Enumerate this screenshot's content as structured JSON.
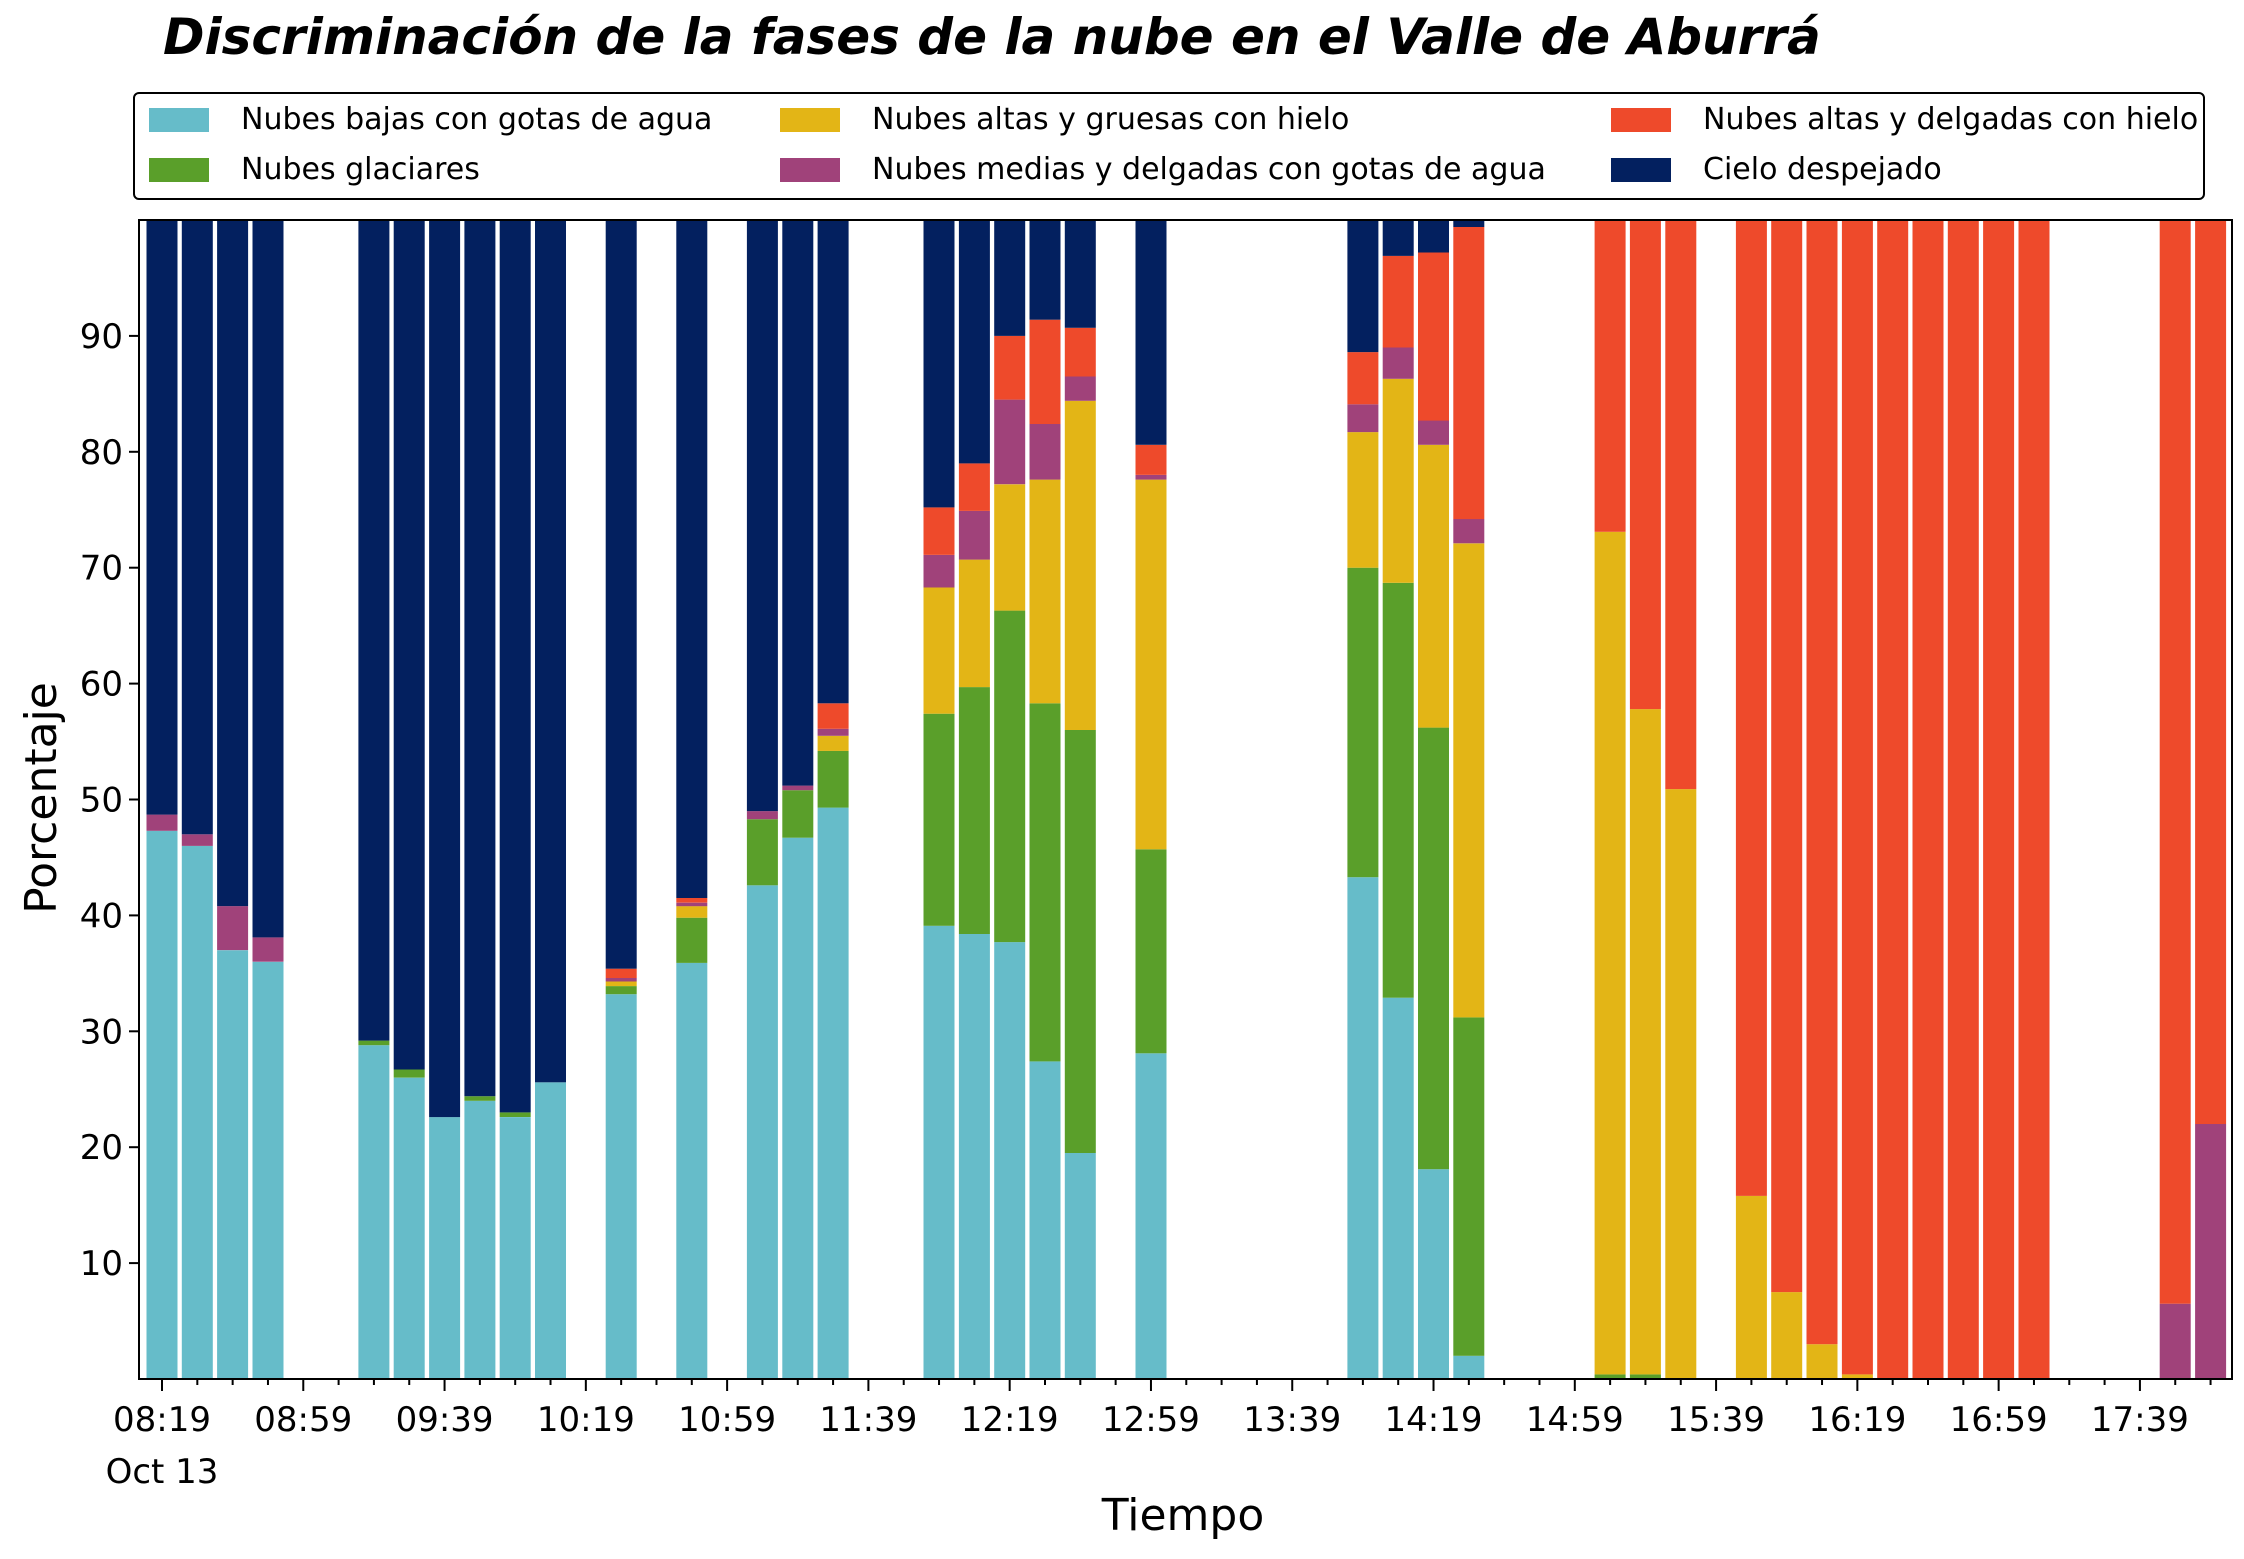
{
  "chart_data": {
    "type": "bar",
    "stacked": true,
    "title": "Discriminación de la fases de la nube en el Valle de Aburrá",
    "xlabel": "Tiempo",
    "ylabel": "Porcentaje",
    "ylim": [
      0,
      100
    ],
    "yticks": [
      10,
      20,
      30,
      40,
      50,
      60,
      70,
      80,
      90
    ],
    "x_start": "08:19",
    "x_step_minutes": 5,
    "xtick_labels": [
      {
        "label": "08:19",
        "sublabel": "Oct 13",
        "slot": 0
      },
      {
        "label": "08:59",
        "slot": 8
      },
      {
        "label": "09:39",
        "slot": 16
      },
      {
        "label": "10:19",
        "slot": 24
      },
      {
        "label": "10:59",
        "slot": 32
      },
      {
        "label": "11:39",
        "slot": 40
      },
      {
        "label": "12:19",
        "slot": 48
      },
      {
        "label": "12:59",
        "slot": 56
      },
      {
        "label": "13:39",
        "slot": 64
      },
      {
        "label": "14:19",
        "slot": 72
      },
      {
        "label": "14:59",
        "slot": 80
      },
      {
        "label": "15:39",
        "slot": 88
      },
      {
        "label": "16:19",
        "slot": 96
      },
      {
        "label": "16:59",
        "slot": 104
      },
      {
        "label": "17:39",
        "slot": 112
      }
    ],
    "grid": false,
    "legend_position": "top",
    "series": [
      {
        "name": "Nubes bajas con gotas de agua",
        "color": "#66BCC9"
      },
      {
        "name": "Nubes glaciares",
        "color": "#5A9F2A"
      },
      {
        "name": "Nubes altas y gruesas con hielo",
        "color": "#E3B516"
      },
      {
        "name": "Nubes medias y delgadas con gotas de agua",
        "color": "#A0427A"
      },
      {
        "name": "Nubes altas y delgadas con hielo",
        "color": "#EE4A2B"
      },
      {
        "name": "Cielo despejado",
        "color": "#03205F"
      }
    ],
    "bars": [
      {
        "slot": 0,
        "values": [
          47.3,
          0,
          0,
          1.4,
          0,
          51.3
        ]
      },
      {
        "slot": 2,
        "values": [
          46.0,
          0,
          0,
          1.0,
          0,
          53.0
        ]
      },
      {
        "slot": 4,
        "values": [
          37.0,
          0,
          0,
          3.8,
          0,
          59.2
        ]
      },
      {
        "slot": 6,
        "values": [
          36.0,
          0,
          0,
          2.1,
          0,
          61.9
        ]
      },
      {
        "slot": 12,
        "values": [
          28.8,
          0.4,
          0,
          0,
          0,
          70.8
        ]
      },
      {
        "slot": 14,
        "values": [
          26.0,
          0.7,
          0,
          0,
          0,
          73.3
        ]
      },
      {
        "slot": 16,
        "values": [
          22.6,
          0,
          0,
          0,
          0,
          77.4
        ]
      },
      {
        "slot": 18,
        "values": [
          24.0,
          0.4,
          0,
          0,
          0,
          75.6
        ]
      },
      {
        "slot": 20,
        "values": [
          22.6,
          0.4,
          0,
          0,
          0,
          77.0
        ]
      },
      {
        "slot": 22,
        "values": [
          25.6,
          0,
          0,
          0,
          0,
          74.4
        ]
      },
      {
        "slot": 26,
        "values": [
          33.2,
          0.7,
          0.4,
          0.3,
          0.8,
          64.6
        ]
      },
      {
        "slot": 30,
        "values": [
          35.9,
          3.9,
          1.0,
          0.3,
          0.4,
          58.5
        ]
      },
      {
        "slot": 34,
        "values": [
          42.6,
          5.7,
          0,
          0.7,
          0,
          51.0
        ]
      },
      {
        "slot": 36,
        "values": [
          46.7,
          4.1,
          0,
          0.4,
          0,
          48.8
        ]
      },
      {
        "slot": 38,
        "values": [
          49.3,
          4.9,
          1.3,
          0.6,
          2.2,
          41.7
        ]
      },
      {
        "slot": 44,
        "values": [
          39.1,
          18.3,
          10.9,
          2.8,
          4.1,
          24.8
        ]
      },
      {
        "slot": 46,
        "values": [
          38.4,
          21.3,
          11.0,
          4.2,
          4.1,
          21.0
        ]
      },
      {
        "slot": 48,
        "values": [
          37.7,
          28.6,
          10.9,
          7.3,
          5.5,
          10.0
        ]
      },
      {
        "slot": 50,
        "values": [
          27.4,
          30.9,
          19.3,
          4.8,
          9.0,
          8.6
        ]
      },
      {
        "slot": 52,
        "values": [
          19.5,
          36.5,
          28.4,
          2.1,
          4.2,
          9.3
        ]
      },
      {
        "slot": 56,
        "values": [
          28.1,
          17.6,
          31.9,
          0.4,
          2.6,
          19.4
        ]
      },
      {
        "slot": 68,
        "values": [
          43.3,
          26.7,
          11.7,
          2.4,
          4.5,
          11.4
        ]
      },
      {
        "slot": 70,
        "values": [
          32.9,
          35.8,
          17.6,
          2.7,
          7.9,
          3.1
        ]
      },
      {
        "slot": 72,
        "values": [
          18.1,
          38.1,
          24.4,
          2.1,
          14.5,
          2.8
        ]
      },
      {
        "slot": 74,
        "values": [
          2.0,
          29.2,
          40.9,
          2.1,
          25.2,
          0.6
        ]
      },
      {
        "slot": 82,
        "values": [
          0,
          0.4,
          72.7,
          0,
          26.9,
          0
        ]
      },
      {
        "slot": 84,
        "values": [
          0,
          0.4,
          57.4,
          0,
          42.2,
          0
        ]
      },
      {
        "slot": 86,
        "values": [
          0,
          0,
          50.9,
          0,
          49.1,
          0
        ]
      },
      {
        "slot": 90,
        "values": [
          0,
          0,
          15.8,
          0,
          84.2,
          0
        ]
      },
      {
        "slot": 92,
        "values": [
          0,
          0,
          7.5,
          0,
          92.5,
          0
        ]
      },
      {
        "slot": 94,
        "values": [
          0,
          0,
          3.0,
          0,
          97.0,
          0
        ]
      },
      {
        "slot": 96,
        "values": [
          0,
          0,
          0.4,
          0,
          99.6,
          0
        ]
      },
      {
        "slot": 98,
        "values": [
          0,
          0,
          0,
          0,
          100,
          0
        ]
      },
      {
        "slot": 100,
        "values": [
          0,
          0,
          0,
          0,
          100,
          0
        ]
      },
      {
        "slot": 102,
        "values": [
          0,
          0,
          0,
          0,
          100,
          0
        ]
      },
      {
        "slot": 104,
        "values": [
          0,
          0,
          0,
          0,
          100,
          0
        ]
      },
      {
        "slot": 106,
        "values": [
          0,
          0,
          0,
          0,
          100,
          0
        ]
      },
      {
        "slot": 114,
        "values": [
          0,
          0,
          0,
          6.5,
          93.5,
          0
        ]
      },
      {
        "slot": 116,
        "values": [
          0,
          0,
          0,
          22.0,
          78.0,
          0
        ]
      }
    ]
  }
}
